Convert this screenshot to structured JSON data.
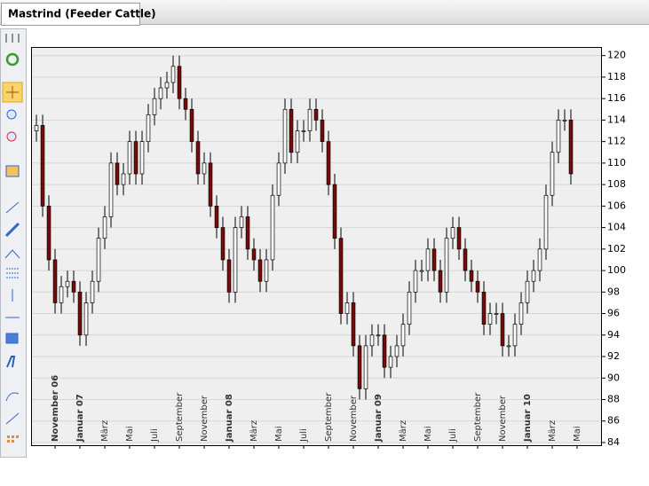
{
  "tab_title": "Mastrind (Feeder Cattle)",
  "chart_data": {
    "type": "candlestick",
    "x": [
      -1.5,
      -1,
      -0.5,
      0,
      0.5,
      1,
      1.5,
      2,
      2.5,
      3,
      3.5,
      4,
      4.5,
      5,
      5.5,
      6,
      6.5,
      7,
      7.5,
      8,
      8.5,
      9,
      9.5,
      10,
      10.5,
      11,
      11.5,
      12,
      12.5,
      13,
      13.5,
      14,
      14.5,
      15,
      15.5,
      16,
      16.5,
      17,
      17.5,
      18,
      18.5,
      19,
      19.5,
      20,
      20.5,
      21,
      21.5,
      22,
      22.5,
      23,
      23.5,
      24,
      24.5,
      25,
      25.5,
      26,
      26.5,
      27,
      27.5,
      28,
      28.5,
      29,
      29.5,
      30,
      30.5,
      31,
      31.5,
      32,
      32.5,
      33,
      33.5,
      34,
      34.5,
      35,
      35.5,
      36,
      36.5,
      37,
      37.5,
      38,
      38.5,
      39,
      39.5,
      40,
      40.5,
      41,
      41.5
    ],
    "open": [
      113,
      113.5,
      106,
      101,
      97,
      98.5,
      99,
      98,
      94,
      97,
      99,
      103,
      105,
      110,
      108,
      109,
      112,
      109,
      112,
      114.5,
      116,
      117,
      117.5,
      119,
      116,
      115,
      112,
      109,
      110,
      106,
      104,
      101,
      98,
      104,
      105,
      102,
      101,
      99,
      101,
      107,
      110,
      115,
      111,
      113,
      113,
      115,
      114,
      112,
      108,
      103,
      96,
      97,
      93,
      89,
      93,
      94,
      94,
      91,
      92,
      93,
      95,
      98,
      100,
      100,
      102,
      100,
      98,
      103,
      104,
      102,
      100,
      99,
      98,
      95,
      96,
      96,
      93,
      93,
      95,
      97,
      99,
      100,
      102,
      107,
      111,
      114,
      114
    ],
    "high": [
      114.5,
      114.5,
      107,
      102,
      99.5,
      100,
      100,
      99,
      98,
      100,
      104,
      106,
      111,
      111,
      110,
      113,
      113,
      113,
      115.5,
      117,
      118,
      118.5,
      120,
      120,
      117,
      116,
      113,
      111,
      111,
      107,
      105,
      102,
      105,
      106,
      106,
      103,
      102,
      102,
      108,
      111,
      116,
      116,
      114,
      114,
      116,
      116,
      115,
      113,
      109,
      104,
      98,
      98,
      94,
      94,
      95,
      95,
      95,
      93,
      94,
      96,
      99,
      101,
      101,
      103,
      103,
      101,
      104,
      105,
      105,
      103,
      101,
      100,
      99,
      97,
      97,
      97,
      94,
      96,
      98,
      100,
      101,
      103,
      108,
      112,
      115,
      115,
      115
    ],
    "low": [
      112,
      105,
      100,
      96,
      96,
      97.5,
      97,
      93,
      93,
      96,
      98,
      102,
      104,
      107,
      107,
      108,
      108,
      108,
      111,
      113.5,
      115,
      116,
      116.5,
      115,
      114,
      111,
      108,
      108,
      105,
      103,
      100,
      97,
      97,
      103,
      101,
      100,
      98,
      98,
      100,
      106,
      109,
      110,
      110,
      112,
      112,
      113,
      111,
      107,
      102,
      95,
      95,
      92,
      88,
      88,
      92,
      93,
      90,
      90,
      91,
      92,
      94,
      97,
      99,
      99,
      99,
      97,
      97,
      102,
      101,
      99,
      98,
      97,
      94,
      94,
      95,
      92,
      92,
      92,
      94,
      96,
      98,
      99,
      101,
      106,
      110,
      113,
      108
    ],
    "close": [
      113.5,
      106,
      101,
      97,
      98.5,
      99,
      98,
      94,
      97,
      99,
      103,
      105,
      110,
      108,
      109,
      112,
      109,
      112,
      114.5,
      116,
      117,
      117.5,
      119,
      116,
      115,
      112,
      109,
      110,
      106,
      104,
      101,
      98,
      104,
      105,
      102,
      101,
      99,
      101,
      107,
      110,
      115,
      111,
      113,
      113,
      115,
      114,
      112,
      108,
      103,
      96,
      97,
      93,
      89,
      93,
      94,
      94,
      91,
      92,
      93,
      95,
      98,
      100,
      100,
      102,
      100,
      98,
      103,
      104,
      102,
      100,
      99,
      98,
      95,
      96,
      96,
      93,
      93,
      95,
      97,
      99,
      100,
      102,
      107,
      111,
      114,
      114,
      109
    ],
    "up_color": "#ffffff",
    "down_color": "#7a0a0a",
    "xlim": [
      -1.93,
      44
    ],
    "xticks": [
      {
        "value": 0,
        "label": "November 06"
      },
      {
        "value": 2,
        "label": "Januar 07"
      },
      {
        "value": 4,
        "label": "März"
      },
      {
        "value": 6,
        "label": "Mai"
      },
      {
        "value": 8,
        "label": "Juli"
      },
      {
        "value": 10,
        "label": "September"
      },
      {
        "value": 12,
        "label": "November"
      },
      {
        "value": 14,
        "label": "Januar 08"
      },
      {
        "value": 16,
        "label": "März"
      },
      {
        "value": 18,
        "label": "Mai"
      },
      {
        "value": 20,
        "label": "Juli"
      },
      {
        "value": 22,
        "label": "September"
      },
      {
        "value": 24,
        "label": "November"
      },
      {
        "value": 26,
        "label": "Januar 09"
      },
      {
        "value": 28,
        "label": "März"
      },
      {
        "value": 30,
        "label": "Mai"
      },
      {
        "value": 32,
        "label": "Juli"
      },
      {
        "value": 34,
        "label": "September"
      },
      {
        "value": 36,
        "label": "November"
      },
      {
        "value": 38,
        "label": "Januar 10"
      },
      {
        "value": 40,
        "label": "März"
      },
      {
        "value": 42,
        "label": "Mai"
      }
    ],
    "ylim": [
      83.75,
      120.8
    ],
    "yticks": [
      84,
      86,
      88,
      90,
      92,
      94,
      96,
      98,
      100,
      102,
      104,
      106,
      108,
      110,
      112,
      114,
      116,
      118,
      120
    ],
    "grid": true
  }
}
